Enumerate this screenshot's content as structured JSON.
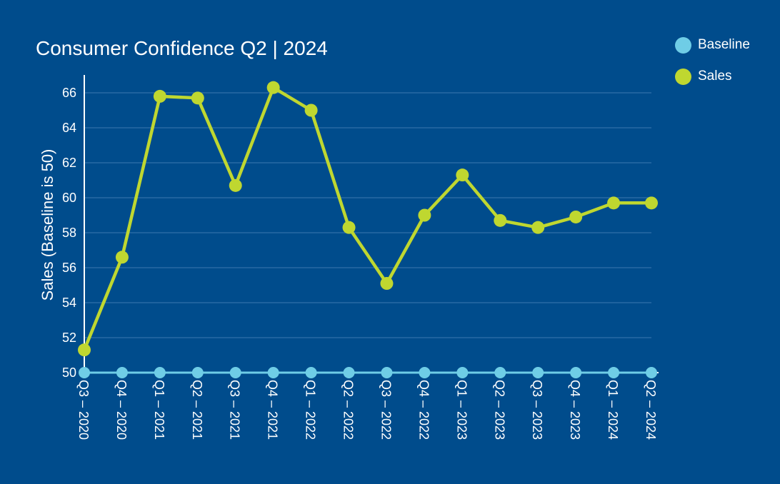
{
  "chart_data": {
    "type": "line",
    "title": "Consumer Confidence Q2 | 2024",
    "ylabel": "Sales (Baseline is 50)",
    "xlabel": "",
    "ylim": [
      50,
      67
    ],
    "yticks": [
      50,
      52,
      54,
      56,
      58,
      60,
      62,
      64,
      66
    ],
    "grid": true,
    "legend_position": "top-right",
    "categories": [
      "Q3 – 2020",
      "Q4 – 2020",
      "Q1 – 2021",
      "Q2 – 2021",
      "Q3 – 2021",
      "Q4 – 2021",
      "Q1 – 2022",
      "Q2 – 2022",
      "Q3 – 2022",
      "Q4 – 2022",
      "Q1 – 2023",
      "Q2 – 2023",
      "Q3 – 2023",
      "Q4 – 2023",
      "Q1 – 2024",
      "Q2 – 2024"
    ],
    "series": [
      {
        "name": "Baseline",
        "color": "#6fcde6",
        "values": [
          50,
          50,
          50,
          50,
          50,
          50,
          50,
          50,
          50,
          50,
          50,
          50,
          50,
          50,
          50,
          50
        ]
      },
      {
        "name": "Sales",
        "color": "#bfd730",
        "values": [
          51.3,
          56.6,
          65.8,
          65.7,
          60.7,
          66.3,
          65.0,
          58.3,
          55.1,
          59.0,
          61.3,
          58.7,
          58.3,
          58.9,
          59.7,
          59.7
        ]
      }
    ]
  }
}
